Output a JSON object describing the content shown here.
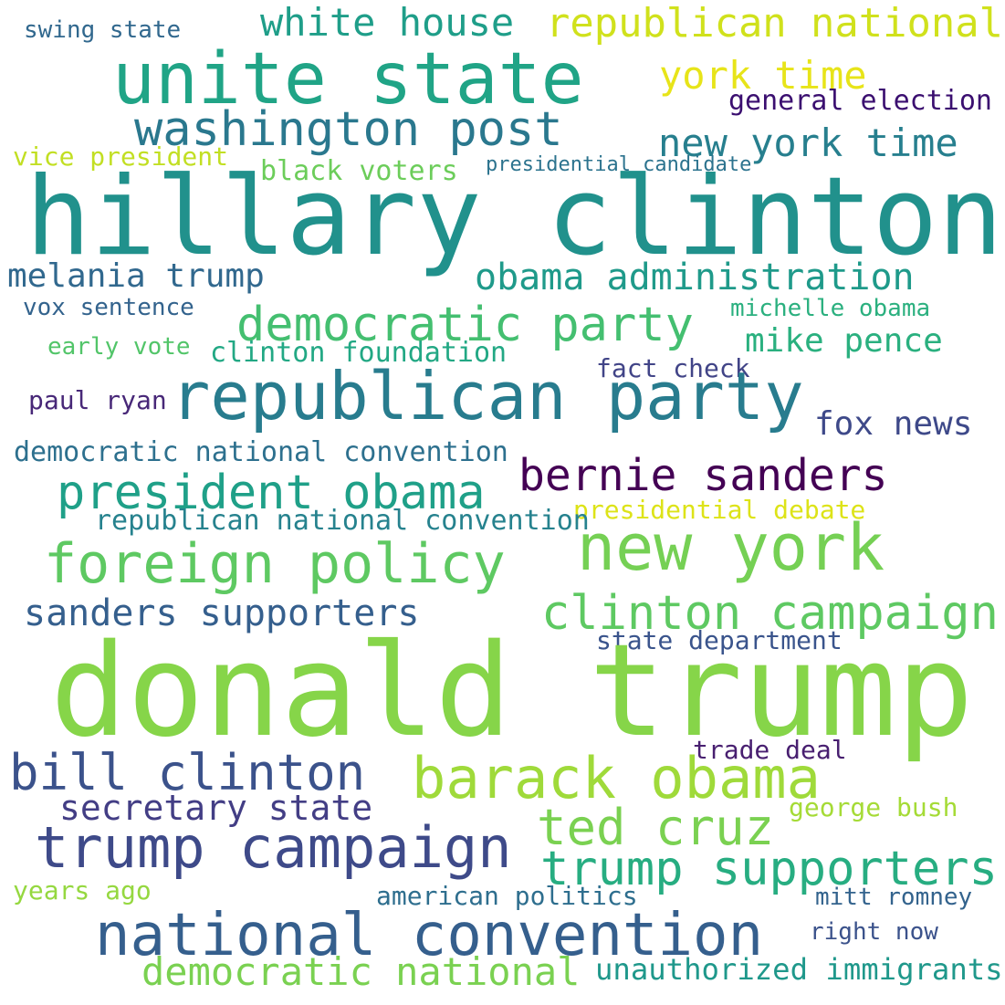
{
  "words": [
    {
      "text": "swing state",
      "color": "#31688e"
    },
    {
      "text": "white house",
      "color": "#1f9e89"
    },
    {
      "text": "republican national",
      "color": "#d0e11c"
    },
    {
      "text": "unite state",
      "color": "#20a486"
    },
    {
      "text": "york time",
      "color": "#e7e419"
    },
    {
      "text": "washington post",
      "color": "#2a788e"
    },
    {
      "text": "general election",
      "color": "#3b0f70"
    },
    {
      "text": "new york time",
      "color": "#277f8e"
    },
    {
      "text": "vice president",
      "color": "#c2df23"
    },
    {
      "text": "black voters",
      "color": "#6ccd5a"
    },
    {
      "text": "presidential candidate",
      "color": "#2c738e"
    },
    {
      "text": "hillary clinton",
      "color": "#21918c"
    },
    {
      "text": "melania trump",
      "color": "#31688e"
    },
    {
      "text": "obama administration",
      "color": "#1f9a8a"
    },
    {
      "text": "vox sentence",
      "color": "#33638d"
    },
    {
      "text": "michelle obama",
      "color": "#2bb07f"
    },
    {
      "text": "democratic party",
      "color": "#44bf70"
    },
    {
      "text": "early vote",
      "color": "#52c569"
    },
    {
      "text": "clinton foundation",
      "color": "#22a884"
    },
    {
      "text": "mike pence",
      "color": "#2ab07f"
    },
    {
      "text": "fact check",
      "color": "#414487"
    },
    {
      "text": "paul ryan",
      "color": "#482878"
    },
    {
      "text": "republican party",
      "color": "#287c8e"
    },
    {
      "text": "fox news",
      "color": "#3e4989"
    },
    {
      "text": "democratic national convention",
      "color": "#2d708e"
    },
    {
      "text": "bernie sanders",
      "color": "#440154"
    },
    {
      "text": "president obama",
      "color": "#1fa088"
    },
    {
      "text": "presidential debate",
      "color": "#dde318"
    },
    {
      "text": "republican national convention",
      "color": "#26828e"
    },
    {
      "text": "new york",
      "color": "#75d054"
    },
    {
      "text": "foreign policy",
      "color": "#5ec962"
    },
    {
      "text": "clinton campaign",
      "color": "#5ec962"
    },
    {
      "text": "sanders supporters",
      "color": "#355f8d"
    },
    {
      "text": "state department",
      "color": "#3a548c"
    },
    {
      "text": "donald trump",
      "color": "#86d549"
    },
    {
      "text": "trade deal",
      "color": "#481f70"
    },
    {
      "text": "bill clinton",
      "color": "#3b528b"
    },
    {
      "text": "barack obama",
      "color": "#9fda3a"
    },
    {
      "text": "secretary state",
      "color": "#433e85"
    },
    {
      "text": "george bush",
      "color": "#a5db36"
    },
    {
      "text": "ted cruz",
      "color": "#7ad151"
    },
    {
      "text": "trump campaign",
      "color": "#3e4a89"
    },
    {
      "text": "trump supporters",
      "color": "#27ad81"
    },
    {
      "text": "years ago",
      "color": "#95d840"
    },
    {
      "text": "american politics",
      "color": "#2e6e8e"
    },
    {
      "text": "mitt romney",
      "color": "#33638d"
    },
    {
      "text": "right now",
      "color": "#3b528b"
    },
    {
      "text": "national convention",
      "color": "#355f8d"
    },
    {
      "text": "democratic national",
      "color": "#7ad151"
    },
    {
      "text": "unauthorized immigrants",
      "color": "#1f988b"
    }
  ]
}
